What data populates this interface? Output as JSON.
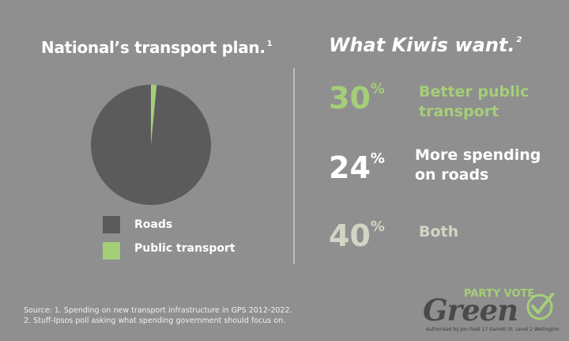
{
  "left_title": "National’s transport plan.",
  "left_title_sup": "1",
  "right_title": "What Kiwis want.",
  "right_title_sup": "2",
  "chart_data": {
    "type": "pie",
    "title": "National’s transport plan.",
    "categories": [
      "Roads",
      "Public transport"
    ],
    "values": [
      98.5,
      1.5
    ],
    "colors": [
      "#5b5b5b",
      "#a4cf78"
    ],
    "legend": [
      "Roads",
      "Public transport"
    ],
    "legend_placement": "bottom"
  },
  "stats": [
    {
      "value": "30",
      "unit": "%",
      "line1": "Better public",
      "line2": "transport",
      "color": "#a4cf78"
    },
    {
      "value": "24",
      "unit": "%",
      "line1": "More spending",
      "line2": "on roads",
      "color": "#ffffff"
    },
    {
      "value": "40",
      "unit": "%",
      "line1": "Both",
      "line2": "",
      "color": "#d4d4c4"
    }
  ],
  "source": {
    "line1": "Source: 1. Spending on new transport infrastructure in GPS 2012-2022.",
    "line2": "2. Stuff-Ipsos poll asking what spending government should focus on."
  },
  "logo": {
    "party_vote": "PARTY VOTE",
    "brand": "Green",
    "authorised": "Authorised by Jon Field 17 Garrett St. Level 2 Wellington"
  },
  "colors": {
    "background": "#8f8f8f",
    "accent": "#a4cf78",
    "roads": "#5b5b5b"
  }
}
